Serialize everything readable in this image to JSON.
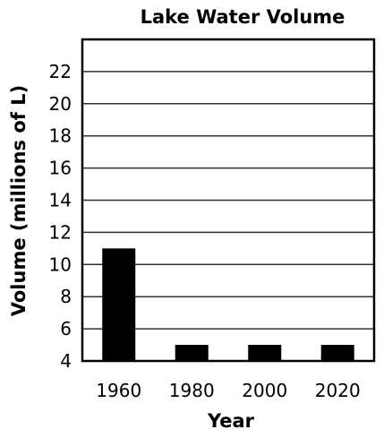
{
  "chart_data": {
    "type": "bar",
    "title": "Lake Water Volume",
    "xlabel": "Year",
    "ylabel": "Volume (millions of L)",
    "categories": [
      "1960",
      "1980",
      "2000",
      "2020"
    ],
    "values": [
      11,
      5,
      5,
      5
    ],
    "ylim": [
      4,
      24
    ],
    "yticks": [
      4,
      6,
      8,
      10,
      12,
      14,
      16,
      18,
      20,
      22
    ],
    "grid": true,
    "bar_color": "#000000"
  }
}
